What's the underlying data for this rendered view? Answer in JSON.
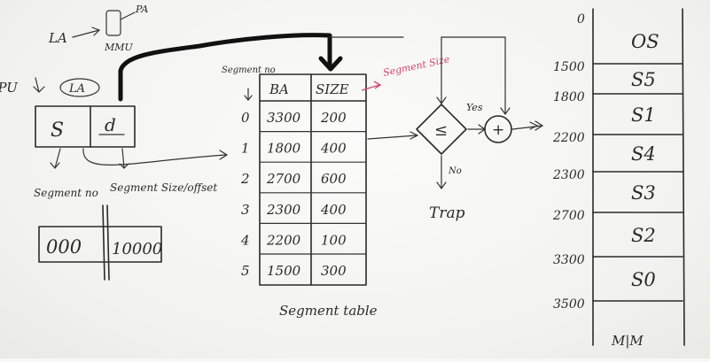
{
  "top_left": {
    "la": "LA",
    "mmu": "MMU",
    "pa": "PA",
    "cpu": "CPU",
    "la_circle": "LA"
  },
  "logical_address": {
    "s": "S",
    "d": "d"
  },
  "labels": {
    "segment_no": "Segment no",
    "segment_size": "Segment Size/offset"
  },
  "example_value": {
    "segment_part": "000",
    "offset_part": "10000"
  },
  "segment_table": {
    "header_no": "Segment no",
    "header_ba": "BA",
    "header_size": "SIZE",
    "size_note": "Segment Size",
    "caption": "Segment table",
    "rows": [
      {
        "no": "0",
        "ba": "3300",
        "size": "200"
      },
      {
        "no": "1",
        "ba": "1800",
        "size": "400"
      },
      {
        "no": "2",
        "ba": "2700",
        "size": "600"
      },
      {
        "no": "3",
        "ba": "2300",
        "size": "400"
      },
      {
        "no": "4",
        "ba": "2200",
        "size": "100"
      },
      {
        "no": "5",
        "ba": "1500",
        "size": "300"
      }
    ]
  },
  "compare": {
    "symbol": "≤",
    "yes": "Yes",
    "no": "No",
    "plus": "+",
    "trap": "Trap"
  },
  "memory": {
    "caption": "M|M",
    "addresses": [
      "0",
      "1500",
      "1800",
      "2200",
      "2300",
      "2700",
      "3300",
      "3500"
    ],
    "blocks": [
      "OS",
      "S5",
      "S1",
      "S4",
      "S3",
      "S2",
      "S0"
    ]
  }
}
